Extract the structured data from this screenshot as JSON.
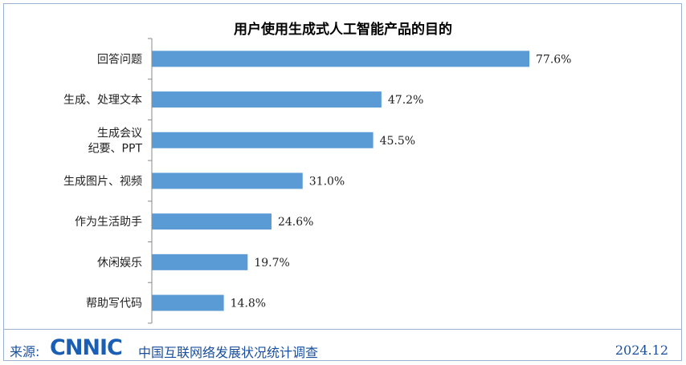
{
  "chart_data": {
    "type": "bar",
    "orientation": "horizontal",
    "title": "用户使用生成式人工智能产品的目的",
    "categories": [
      "回答问题",
      "生成、处理文本",
      "生成会议\n纪要、PPT",
      "生成图片、视频",
      "作为生活助手",
      "休闲娱乐",
      "帮助写代码"
    ],
    "values": [
      77.6,
      47.2,
      45.5,
      31.0,
      24.6,
      19.7,
      14.8
    ],
    "value_labels": [
      "77.6%",
      "47.2%",
      "45.5%",
      "31.0%",
      "24.6%",
      "19.7%",
      "14.8%"
    ],
    "unit": "%",
    "xlim": [
      0,
      80
    ],
    "grid": false,
    "bar_color": "#5b9bd5"
  },
  "footer": {
    "source_label": "来源:",
    "logo_text": "CNNIC",
    "source": "中国互联网络发展状况统计调查",
    "date": "2024.12"
  },
  "watermark": "CNNIC"
}
